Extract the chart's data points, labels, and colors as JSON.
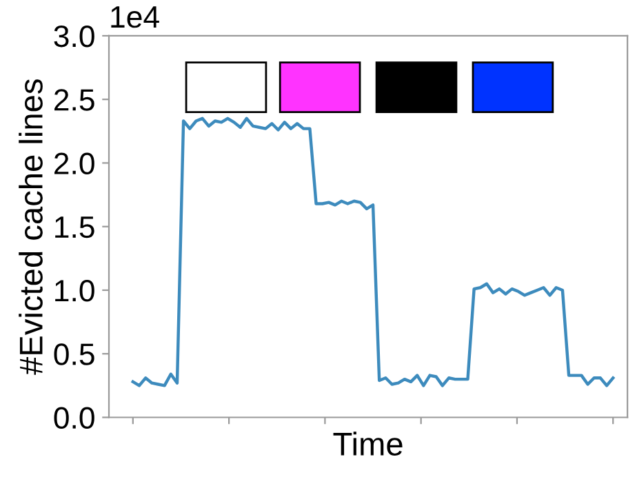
{
  "chart_data": {
    "type": "line",
    "xlabel": "Time",
    "ylabel": "#Evicted cache lines",
    "annotations": [
      "1e4"
    ],
    "categories": [
      null,
      null,
      null,
      null,
      null,
      null,
      null,
      null,
      null,
      null,
      null,
      null,
      null,
      null,
      null,
      null,
      null,
      null,
      null,
      null,
      null,
      null,
      null,
      null,
      null,
      null,
      null,
      null,
      null,
      null,
      null,
      null,
      null,
      null,
      null,
      null,
      null,
      null,
      null,
      null,
      null,
      null,
      null,
      null,
      null,
      null,
      null,
      null,
      null,
      null,
      null,
      null,
      null,
      null,
      null,
      null,
      null,
      null,
      null,
      null,
      null,
      null,
      null,
      null,
      null,
      null,
      null,
      null,
      null,
      null,
      null,
      null,
      null,
      null,
      null,
      null,
      null
    ],
    "series": [
      {
        "color": "#3d8bbd",
        "values": [
          0.28,
          0.25,
          0.31,
          0.27,
          0.26,
          0.25,
          0.34,
          0.27,
          2.33,
          2.27,
          2.33,
          2.35,
          2.29,
          2.33,
          2.32,
          2.35,
          2.32,
          2.28,
          2.35,
          2.29,
          2.28,
          2.27,
          2.31,
          2.26,
          2.32,
          2.27,
          2.31,
          2.27,
          2.27,
          1.68,
          1.68,
          1.69,
          1.67,
          1.7,
          1.68,
          1.7,
          1.69,
          1.64,
          1.67,
          0.29,
          0.31,
          0.26,
          0.27,
          0.3,
          0.28,
          0.33,
          0.25,
          0.33,
          0.32,
          0.25,
          0.31,
          0.3,
          0.3,
          0.3,
          1.01,
          1.02,
          1.05,
          0.98,
          1.01,
          0.97,
          1.01,
          0.99,
          0.96,
          0.98,
          1.0,
          1.02,
          0.96,
          1.02,
          1.0,
          0.33,
          0.33,
          0.33,
          0.26,
          0.31,
          0.31,
          0.25,
          0.31
        ]
      }
    ],
    "tick_labels": "y",
    "ylim": [
      0,
      3.0
    ],
    "yticks": [
      {
        "value": 0,
        "label": "0.0"
      },
      {
        "value": 0.5,
        "label": "0.5"
      },
      {
        "value": 1,
        "label": "1.0"
      },
      {
        "value": 1.5,
        "label": "1.5"
      },
      {
        "value": 2,
        "label": "2.0"
      },
      {
        "value": 2.5,
        "label": "2.5"
      },
      {
        "value": 3,
        "label": "3.0"
      }
    ],
    "grid": false,
    "legend": false,
    "marker": "none",
    "line_style": "solid"
  }
}
